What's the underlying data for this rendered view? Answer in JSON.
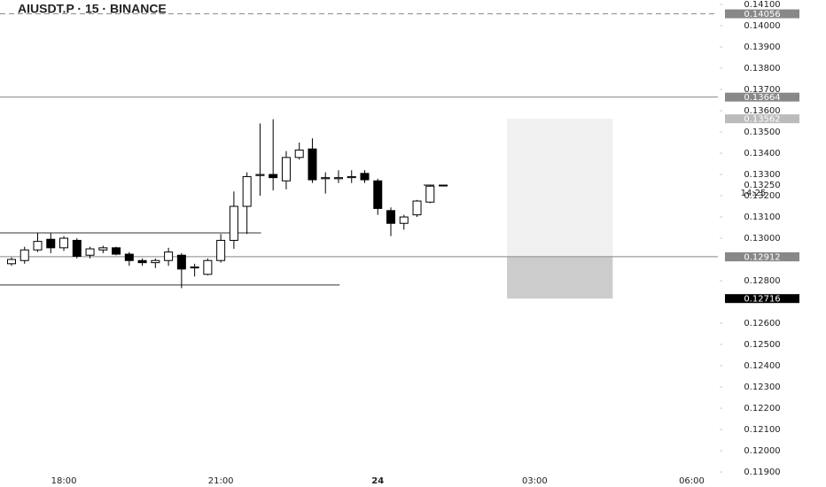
{
  "chart_data": {
    "type": "candlestick",
    "title": "AIUSDT.P · 15 · BINANCE",
    "x": [
      17.0,
      17.25,
      17.5,
      17.75,
      18.0,
      18.25,
      18.5,
      18.75,
      19.0,
      19.25,
      19.5,
      19.75,
      20.0,
      20.25,
      20.5,
      20.75,
      21.0,
      21.25,
      21.5,
      21.75,
      22.0,
      22.25,
      22.5,
      22.75,
      23.0,
      23.25,
      23.5,
      23.75,
      24.0,
      24.25,
      24.5,
      24.75,
      25.0,
      25.25
    ],
    "open": [
      0.1288,
      0.12895,
      0.12945,
      0.12995,
      0.12955,
      0.1299,
      0.1292,
      0.12945,
      0.12955,
      0.12925,
      0.12895,
      0.12885,
      0.12895,
      0.1292,
      0.1286,
      0.1283,
      0.12895,
      0.1299,
      0.1315,
      0.13295,
      0.133,
      0.1327,
      0.1338,
      0.1342,
      0.1328,
      0.1328,
      0.13285,
      0.13305,
      0.1327,
      0.1313,
      0.1307,
      0.1311,
      0.1317,
      0.1325
    ],
    "high": [
      0.1291,
      0.1296,
      0.13025,
      0.13025,
      0.1301,
      0.13,
      0.1296,
      0.12965,
      0.1296,
      0.12935,
      0.12905,
      0.12905,
      0.12955,
      0.1293,
      0.1288,
      0.12905,
      0.1302,
      0.1322,
      0.1331,
      0.1354,
      0.1356,
      0.1341,
      0.1345,
      0.1347,
      0.1331,
      0.1332,
      0.1332,
      0.1332,
      0.1328,
      0.13145,
      0.1311,
      0.1318,
      0.1325,
      0.1325
    ],
    "low": [
      0.1287,
      0.1288,
      0.12935,
      0.1293,
      0.1294,
      0.12905,
      0.12905,
      0.1293,
      0.1292,
      0.1287,
      0.1287,
      0.1286,
      0.1287,
      0.12765,
      0.1282,
      0.12825,
      0.12885,
      0.1295,
      0.1302,
      0.132,
      0.13225,
      0.1323,
      0.1337,
      0.1326,
      0.1321,
      0.1326,
      0.1326,
      0.1326,
      0.1311,
      0.1301,
      0.1304,
      0.131,
      0.13165,
      0.1325
    ],
    "close": [
      0.129,
      0.12945,
      0.12985,
      0.12955,
      0.13,
      0.12915,
      0.1295,
      0.12955,
      0.12925,
      0.12895,
      0.12885,
      0.12895,
      0.12935,
      0.12855,
      0.12865,
      0.12895,
      0.1299,
      0.1315,
      0.1329,
      0.133,
      0.13285,
      0.1338,
      0.13415,
      0.13275,
      0.13285,
      0.13285,
      0.1329,
      0.13275,
      0.1314,
      0.1307,
      0.131,
      0.13175,
      0.13245,
      0.1325
    ],
    "up_color": "#ffffff",
    "down_color": "#000000",
    "xlim": [
      16.78,
      30.5
    ],
    "xticks": [
      {
        "value": 18,
        "label": "18:00"
      },
      {
        "value": 21,
        "label": "21:00"
      },
      {
        "value": 24,
        "label": "24"
      },
      {
        "value": 27,
        "label": "03:00"
      },
      {
        "value": 30,
        "label": "06:00"
      }
    ],
    "ylim": [
      0.11871,
      0.14121
    ],
    "yticks": [
      {
        "value": 0.141,
        "label": "0.14100"
      },
      {
        "value": 0.14,
        "label": "0.14000"
      },
      {
        "value": 0.139,
        "label": "0.13900"
      },
      {
        "value": 0.138,
        "label": "0.13800"
      },
      {
        "value": 0.137,
        "label": "0.13700"
      },
      {
        "value": 0.136,
        "label": "0.13600"
      },
      {
        "value": 0.135,
        "label": "0.13500"
      },
      {
        "value": 0.134,
        "label": "0.13400"
      },
      {
        "value": 0.133,
        "label": "0.13300"
      },
      {
        "value": 0.132,
        "label": "0.13200"
      },
      {
        "value": 0.131,
        "label": "0.13100"
      },
      {
        "value": 0.13,
        "label": "0.13000"
      },
      {
        "value": 0.128,
        "label": "0.12800"
      },
      {
        "value": 0.126,
        "label": "0.12600"
      },
      {
        "value": 0.125,
        "label": "0.12500"
      },
      {
        "value": 0.124,
        "label": "0.12400"
      },
      {
        "value": 0.123,
        "label": "0.12300"
      },
      {
        "value": 0.122,
        "label": "0.12200"
      },
      {
        "value": 0.121,
        "label": "0.12100"
      },
      {
        "value": 0.12,
        "label": "0.12000"
      },
      {
        "value": 0.119,
        "label": "0.11900"
      }
    ],
    "price_lines": [
      {
        "value": 0.14056,
        "color": "#888888",
        "dashed": true,
        "line": true
      },
      {
        "value": 0.13664,
        "color": "#888888",
        "dashed": false,
        "line": true
      },
      {
        "value": 0.13562,
        "color": "#bbbbbb",
        "dashed": false,
        "line": false
      },
      {
        "value": 0.12913,
        "color": "#888888",
        "dashed": false,
        "line": true
      },
      {
        "value": 0.12912,
        "color": "#888888",
        "dashed": false,
        "line": false
      },
      {
        "value": 0.12716,
        "color": "#000000",
        "dashed": false,
        "line": false
      }
    ],
    "current_price": {
      "value": 0.1325,
      "label": "0.13250"
    },
    "countdown": "14:25",
    "range_lines": [
      {
        "value": 0.13025,
        "x": [
          16.78,
          21.77
        ]
      },
      {
        "value": 0.1278,
        "x": [
          16.78,
          23.27
        ]
      }
    ],
    "zone": {
      "x": [
        26.47,
        28.49
      ],
      "upper": [
        0.12913,
        0.13562
      ],
      "lower": [
        0.12716,
        0.12913
      ],
      "upper_color": "#f0f0f0",
      "lower_color": "#cccccc"
    }
  }
}
